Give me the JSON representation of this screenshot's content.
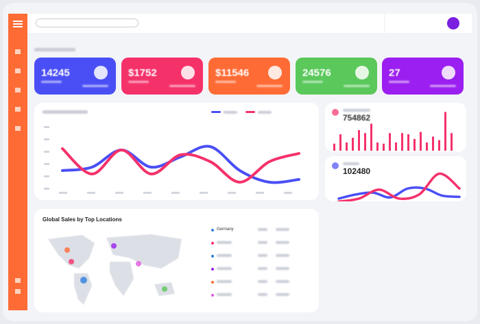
{
  "cards": [
    {
      "value": "14245",
      "color": "#4a4ff5"
    },
    {
      "value": "$1752",
      "color": "#f5316a"
    },
    {
      "value": "$11546",
      "color": "#ff6b35"
    },
    {
      "value": "24576",
      "color": "#5ac85a"
    },
    {
      "value": "27",
      "color": "#9b1ff0"
    }
  ],
  "main_chart": {
    "type": "line",
    "ylim": [
      0,
      100
    ],
    "series": [
      {
        "color": "#4a4ff5",
        "values": [
          35,
          40,
          65,
          40,
          55,
          70,
          35,
          18,
          22
        ]
      },
      {
        "color": "#f5316a",
        "values": [
          67,
          30,
          65,
          30,
          58,
          48,
          18,
          48,
          60
        ]
      }
    ]
  },
  "bar_chart": {
    "type": "bar",
    "value": "754862",
    "color": "#f5316a",
    "ylim": [
      0,
      70
    ],
    "values": [
      12,
      28,
      14,
      22,
      35,
      30,
      46,
      14,
      12,
      30,
      14,
      30,
      28,
      20,
      32,
      14,
      24,
      18,
      66,
      30
    ]
  },
  "small_chart": {
    "type": "line",
    "value": "102480",
    "ylim": [
      0,
      60
    ],
    "series": [
      {
        "color": "#4a4ff5",
        "values": [
          7,
          14,
          17,
          9,
          24,
          24,
          12,
          10
        ]
      },
      {
        "color": "#f5316a",
        "values": [
          2,
          7,
          22,
          7,
          14,
          49,
          24
        ]
      }
    ]
  },
  "map": {
    "title": "Global Sales by Top Locations",
    "locations": [
      {
        "name": "Germany",
        "color": "#2f7fe0"
      },
      {
        "name": null,
        "color": "#f5316a"
      },
      {
        "name": null,
        "color": "#2f7fe0"
      },
      {
        "name": null,
        "color": "#9b1ff0"
      },
      {
        "name": null,
        "color": "#ff6b35"
      },
      {
        "name": null,
        "color": "#e056e0"
      }
    ]
  }
}
